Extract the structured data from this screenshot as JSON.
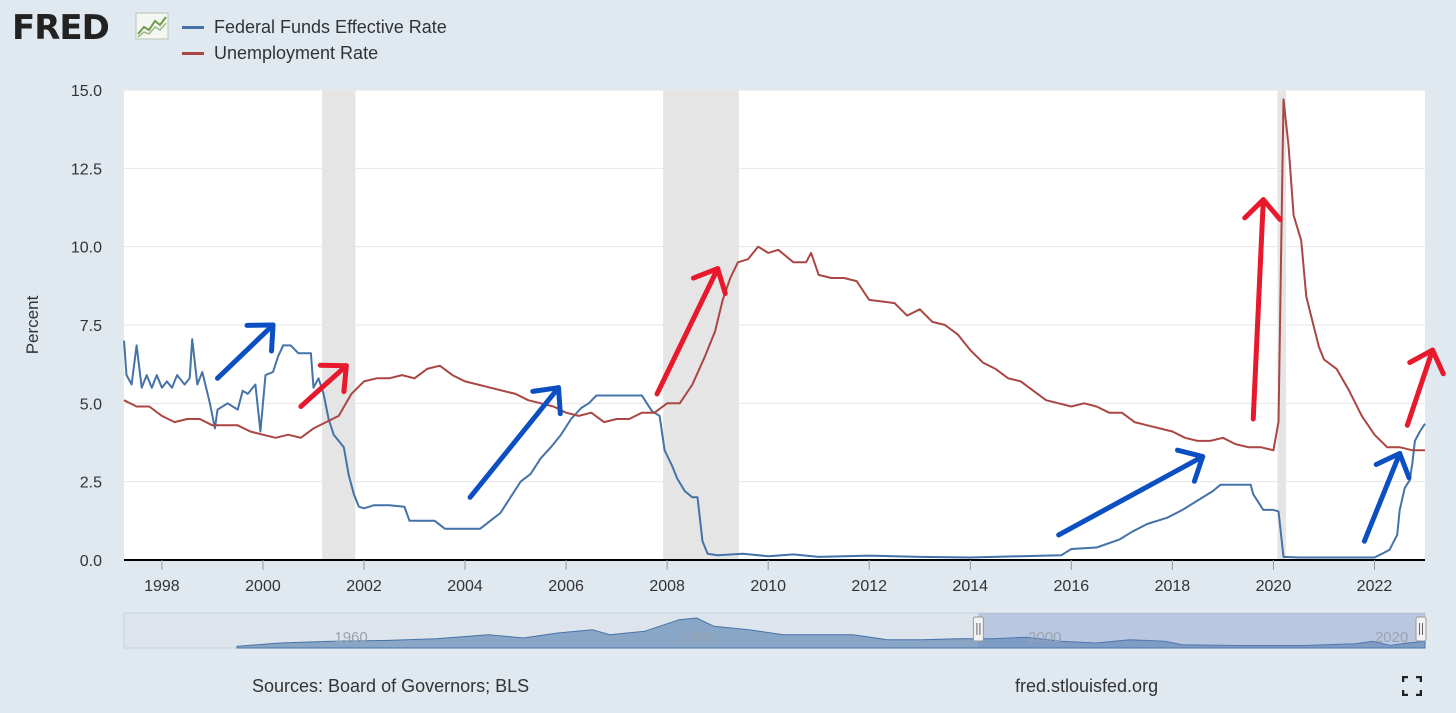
{
  "header": {
    "logo_text": "FRED"
  },
  "footer": {
    "sources": "Sources: Board of Governors; BLS",
    "url": "fred.stlouisfed.org"
  },
  "icons": {
    "logo": "line-chart-icon",
    "fullscreen": "fullscreen-icon"
  },
  "colors": {
    "fed_funds": "#4572a7",
    "unemployment": "#aa4643",
    "recession": "#e5e5e5",
    "arrow_blue": "#0b4fc2",
    "arrow_red": "#e8192c"
  },
  "chart_data": {
    "type": "line",
    "title": "",
    "xlabel": "",
    "ylabel": "Percent",
    "xlim": [
      1997.25,
      2023.0
    ],
    "ylim": [
      0,
      15
    ],
    "yticks": [
      0,
      2.5,
      5,
      7.5,
      10,
      12.5,
      15
    ],
    "ytick_labels": [
      "0.0",
      "2.5",
      "5.0",
      "7.5",
      "10.0",
      "12.5",
      "15.0"
    ],
    "xticks": [
      1998,
      2000,
      2002,
      2004,
      2006,
      2008,
      2010,
      2012,
      2014,
      2016,
      2018,
      2020,
      2022
    ],
    "xtick_labels": [
      "1998",
      "2000",
      "2002",
      "2004",
      "2006",
      "2008",
      "2010",
      "2012",
      "2014",
      "2016",
      "2018",
      "2020",
      "2022"
    ],
    "recessions": [
      [
        2001.17,
        2001.83
      ],
      [
        2007.92,
        2009.42
      ],
      [
        2020.08,
        2020.25
      ]
    ],
    "series": [
      {
        "name": "Federal Funds Effective Rate",
        "points": [
          [
            1997.25,
            7.0
          ],
          [
            1997.3,
            5.9
          ],
          [
            1997.4,
            5.6
          ],
          [
            1997.5,
            6.85
          ],
          [
            1997.6,
            5.5
          ],
          [
            1997.7,
            5.9
          ],
          [
            1997.8,
            5.5
          ],
          [
            1997.9,
            5.9
          ],
          [
            1998.0,
            5.5
          ],
          [
            1998.1,
            5.7
          ],
          [
            1998.2,
            5.5
          ],
          [
            1998.3,
            5.9
          ],
          [
            1998.45,
            5.6
          ],
          [
            1998.55,
            5.8
          ],
          [
            1998.6,
            7.05
          ],
          [
            1998.7,
            5.6
          ],
          [
            1998.8,
            6.0
          ],
          [
            1998.95,
            5.0
          ],
          [
            1999.05,
            4.2
          ],
          [
            1999.1,
            4.8
          ],
          [
            1999.3,
            5.0
          ],
          [
            1999.5,
            4.8
          ],
          [
            1999.6,
            5.4
          ],
          [
            1999.7,
            5.3
          ],
          [
            1999.85,
            5.6
          ],
          [
            1999.95,
            4.1
          ],
          [
            2000.05,
            5.9
          ],
          [
            2000.2,
            6.0
          ],
          [
            2000.3,
            6.5
          ],
          [
            2000.4,
            6.85
          ],
          [
            2000.55,
            6.85
          ],
          [
            2000.7,
            6.6
          ],
          [
            2000.85,
            6.6
          ],
          [
            2000.95,
            6.6
          ],
          [
            2001.0,
            5.5
          ],
          [
            2001.1,
            5.8
          ],
          [
            2001.2,
            5.3
          ],
          [
            2001.3,
            4.5
          ],
          [
            2001.4,
            4.0
          ],
          [
            2001.5,
            3.8
          ],
          [
            2001.6,
            3.6
          ],
          [
            2001.7,
            2.7
          ],
          [
            2001.8,
            2.1
          ],
          [
            2001.9,
            1.7
          ],
          [
            2002.0,
            1.65
          ],
          [
            2002.2,
            1.75
          ],
          [
            2002.5,
            1.75
          ],
          [
            2002.8,
            1.7
          ],
          [
            2002.9,
            1.25
          ],
          [
            2003.1,
            1.25
          ],
          [
            2003.4,
            1.25
          ],
          [
            2003.6,
            1.0
          ],
          [
            2003.9,
            1.0
          ],
          [
            2004.1,
            1.0
          ],
          [
            2004.3,
            1.0
          ],
          [
            2004.5,
            1.25
          ],
          [
            2004.7,
            1.5
          ],
          [
            2004.9,
            2.0
          ],
          [
            2005.1,
            2.5
          ],
          [
            2005.3,
            2.75
          ],
          [
            2005.5,
            3.25
          ],
          [
            2005.7,
            3.6
          ],
          [
            2005.9,
            4.0
          ],
          [
            2006.1,
            4.5
          ],
          [
            2006.3,
            4.85
          ],
          [
            2006.45,
            5.0
          ],
          [
            2006.6,
            5.25
          ],
          [
            2006.8,
            5.25
          ],
          [
            2007.0,
            5.25
          ],
          [
            2007.3,
            5.25
          ],
          [
            2007.5,
            5.25
          ],
          [
            2007.6,
            5.0
          ],
          [
            2007.7,
            4.75
          ],
          [
            2007.85,
            4.6
          ],
          [
            2007.95,
            3.5
          ],
          [
            2008.1,
            3.0
          ],
          [
            2008.2,
            2.6
          ],
          [
            2008.35,
            2.2
          ],
          [
            2008.5,
            2.0
          ],
          [
            2008.6,
            2.0
          ],
          [
            2008.7,
            0.6
          ],
          [
            2008.8,
            0.2
          ],
          [
            2009.0,
            0.15
          ],
          [
            2009.5,
            0.2
          ],
          [
            2010.0,
            0.12
          ],
          [
            2010.5,
            0.18
          ],
          [
            2011.0,
            0.1
          ],
          [
            2012.0,
            0.14
          ],
          [
            2013.0,
            0.1
          ],
          [
            2014.0,
            0.08
          ],
          [
            2015.0,
            0.12
          ],
          [
            2015.8,
            0.15
          ],
          [
            2016.0,
            0.35
          ],
          [
            2016.5,
            0.4
          ],
          [
            2016.95,
            0.65
          ],
          [
            2017.2,
            0.9
          ],
          [
            2017.5,
            1.15
          ],
          [
            2017.9,
            1.35
          ],
          [
            2018.2,
            1.6
          ],
          [
            2018.5,
            1.9
          ],
          [
            2018.8,
            2.2
          ],
          [
            2018.95,
            2.4
          ],
          [
            2019.3,
            2.4
          ],
          [
            2019.55,
            2.4
          ],
          [
            2019.6,
            2.1
          ],
          [
            2019.8,
            1.6
          ],
          [
            2020.0,
            1.6
          ],
          [
            2020.1,
            1.55
          ],
          [
            2020.2,
            0.1
          ],
          [
            2020.5,
            0.08
          ],
          [
            2021.0,
            0.08
          ],
          [
            2021.5,
            0.08
          ],
          [
            2022.0,
            0.08
          ],
          [
            2022.15,
            0.2
          ],
          [
            2022.3,
            0.33
          ],
          [
            2022.45,
            0.8
          ],
          [
            2022.5,
            1.6
          ],
          [
            2022.6,
            2.3
          ],
          [
            2022.7,
            2.55
          ],
          [
            2022.75,
            3.1
          ],
          [
            2022.8,
            3.8
          ],
          [
            2022.9,
            4.1
          ],
          [
            2023.0,
            4.35
          ]
        ]
      },
      {
        "name": "Unemployment Rate",
        "points": [
          [
            1997.25,
            5.1
          ],
          [
            1997.5,
            4.9
          ],
          [
            1997.75,
            4.9
          ],
          [
            1998.0,
            4.6
          ],
          [
            1998.25,
            4.4
          ],
          [
            1998.5,
            4.5
          ],
          [
            1998.75,
            4.5
          ],
          [
            1999.0,
            4.3
          ],
          [
            1999.25,
            4.3
          ],
          [
            1999.5,
            4.3
          ],
          [
            1999.75,
            4.1
          ],
          [
            2000.0,
            4.0
          ],
          [
            2000.25,
            3.9
          ],
          [
            2000.5,
            4.0
          ],
          [
            2000.75,
            3.9
          ],
          [
            2001.0,
            4.2
          ],
          [
            2001.25,
            4.4
          ],
          [
            2001.5,
            4.6
          ],
          [
            2001.75,
            5.3
          ],
          [
            2002.0,
            5.7
          ],
          [
            2002.25,
            5.8
          ],
          [
            2002.5,
            5.8
          ],
          [
            2002.75,
            5.9
          ],
          [
            2003.0,
            5.8
          ],
          [
            2003.25,
            6.1
          ],
          [
            2003.5,
            6.2
          ],
          [
            2003.75,
            5.9
          ],
          [
            2004.0,
            5.7
          ],
          [
            2004.25,
            5.6
          ],
          [
            2004.5,
            5.5
          ],
          [
            2004.75,
            5.4
          ],
          [
            2005.0,
            5.3
          ],
          [
            2005.25,
            5.1
          ],
          [
            2005.5,
            5.0
          ],
          [
            2005.75,
            4.9
          ],
          [
            2006.0,
            4.7
          ],
          [
            2006.25,
            4.6
          ],
          [
            2006.5,
            4.7
          ],
          [
            2006.75,
            4.4
          ],
          [
            2007.0,
            4.5
          ],
          [
            2007.25,
            4.5
          ],
          [
            2007.5,
            4.7
          ],
          [
            2007.75,
            4.7
          ],
          [
            2008.0,
            5.0
          ],
          [
            2008.25,
            5.0
          ],
          [
            2008.5,
            5.6
          ],
          [
            2008.75,
            6.5
          ],
          [
            2008.95,
            7.3
          ],
          [
            2009.1,
            8.3
          ],
          [
            2009.25,
            9.0
          ],
          [
            2009.4,
            9.5
          ],
          [
            2009.6,
            9.6
          ],
          [
            2009.8,
            10.0
          ],
          [
            2010.0,
            9.8
          ],
          [
            2010.2,
            9.9
          ],
          [
            2010.5,
            9.5
          ],
          [
            2010.75,
            9.5
          ],
          [
            2010.85,
            9.8
          ],
          [
            2011.0,
            9.1
          ],
          [
            2011.25,
            9.0
          ],
          [
            2011.5,
            9.0
          ],
          [
            2011.75,
            8.9
          ],
          [
            2012.0,
            8.3
          ],
          [
            2012.5,
            8.2
          ],
          [
            2012.75,
            7.8
          ],
          [
            2013.0,
            8.0
          ],
          [
            2013.25,
            7.6
          ],
          [
            2013.5,
            7.5
          ],
          [
            2013.75,
            7.2
          ],
          [
            2014.0,
            6.7
          ],
          [
            2014.25,
            6.3
          ],
          [
            2014.5,
            6.1
          ],
          [
            2014.75,
            5.8
          ],
          [
            2015.0,
            5.7
          ],
          [
            2015.25,
            5.4
          ],
          [
            2015.5,
            5.1
          ],
          [
            2015.75,
            5.0
          ],
          [
            2016.0,
            4.9
          ],
          [
            2016.25,
            5.0
          ],
          [
            2016.5,
            4.9
          ],
          [
            2016.75,
            4.7
          ],
          [
            2017.0,
            4.7
          ],
          [
            2017.25,
            4.4
          ],
          [
            2017.5,
            4.3
          ],
          [
            2017.75,
            4.2
          ],
          [
            2018.0,
            4.1
          ],
          [
            2018.25,
            3.9
          ],
          [
            2018.5,
            3.8
          ],
          [
            2018.75,
            3.8
          ],
          [
            2019.0,
            3.9
          ],
          [
            2019.25,
            3.7
          ],
          [
            2019.5,
            3.6
          ],
          [
            2019.75,
            3.6
          ],
          [
            2020.0,
            3.5
          ],
          [
            2020.1,
            4.4
          ],
          [
            2020.2,
            14.7
          ],
          [
            2020.3,
            13.2
          ],
          [
            2020.4,
            11.0
          ],
          [
            2020.55,
            10.2
          ],
          [
            2020.65,
            8.4
          ],
          [
            2020.9,
            6.8
          ],
          [
            2021.0,
            6.4
          ],
          [
            2021.25,
            6.1
          ],
          [
            2021.5,
            5.4
          ],
          [
            2021.75,
            4.6
          ],
          [
            2022.0,
            4.0
          ],
          [
            2022.25,
            3.6
          ],
          [
            2022.5,
            3.6
          ],
          [
            2022.75,
            3.5
          ],
          [
            2023.0,
            3.5
          ]
        ]
      }
    ],
    "annotations": [
      {
        "type": "arrow",
        "color": "blue",
        "from": [
          1999.1,
          5.8
        ],
        "to": [
          2000.2,
          7.5
        ]
      },
      {
        "type": "arrow",
        "color": "red",
        "from": [
          2000.75,
          4.9
        ],
        "to": [
          2001.65,
          6.2
        ]
      },
      {
        "type": "arrow",
        "color": "blue",
        "from": [
          2004.1,
          2.0
        ],
        "to": [
          2005.85,
          5.5
        ]
      },
      {
        "type": "arrow",
        "color": "red",
        "from": [
          2007.8,
          5.3
        ],
        "to": [
          2009.0,
          9.3
        ]
      },
      {
        "type": "arrow",
        "color": "blue",
        "from": [
          2015.75,
          0.8
        ],
        "to": [
          2018.6,
          3.3
        ]
      },
      {
        "type": "arrow",
        "color": "red",
        "from": [
          2019.6,
          4.5
        ],
        "to": [
          2019.8,
          11.5
        ]
      },
      {
        "type": "arrow",
        "color": "blue",
        "from": [
          2021.8,
          0.6
        ],
        "to": [
          2022.5,
          3.4
        ]
      },
      {
        "type": "arrow",
        "color": "red",
        "from": [
          2022.65,
          4.3
        ],
        "to": [
          2023.15,
          6.7
        ]
      }
    ],
    "navigator": {
      "range": [
        1954.5,
        2023.0
      ],
      "selected": [
        1997.25,
        2023.0
      ],
      "tick_labels": [
        "1960",
        "1980",
        "2000",
        "2020"
      ],
      "tick_values": [
        1960,
        1980,
        2000,
        2020
      ]
    }
  }
}
